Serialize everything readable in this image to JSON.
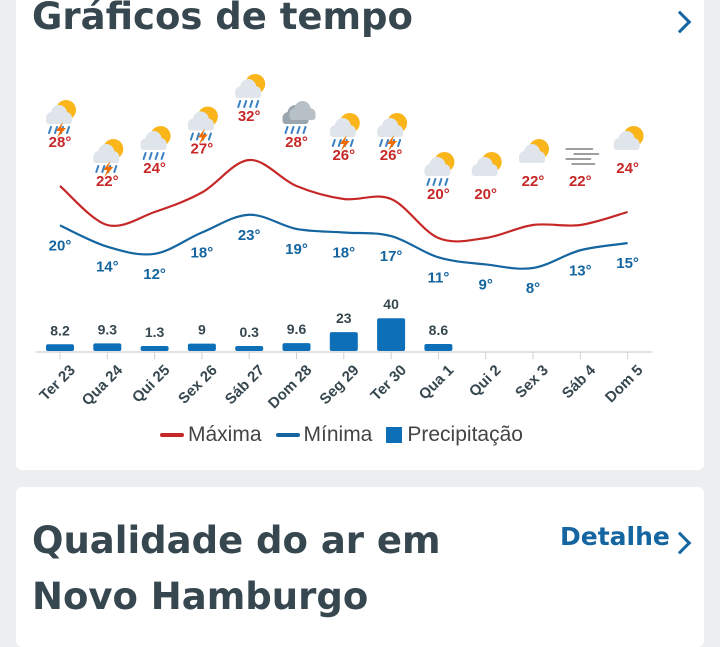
{
  "header": {
    "title": "Gráficos de tempo"
  },
  "air_quality": {
    "title": "Qualidade do ar em Novo Hamburgo",
    "detail_label": "Detalhe"
  },
  "colors": {
    "max": "#c62828",
    "min": "#1565a0",
    "precip": "#0d6fb8",
    "title": "#37474f"
  },
  "chart_data": {
    "type": "line",
    "categories": [
      "Ter 23",
      "Qua 24",
      "Qui 25",
      "Sex 26",
      "Sáb 27",
      "Dom 28",
      "Seg 29",
      "Ter 30",
      "Qua 1",
      "Qui 2",
      "Sex 3",
      "Sáb 4",
      "Dom 5"
    ],
    "icons": [
      "thunderstorm-icon",
      "thunderstorm-icon",
      "rain-icon",
      "thunderstorm-icon",
      "rain-icon",
      "cloudy-rain-icon",
      "thunderstorm-icon",
      "thunderstorm-icon",
      "rain-icon",
      "partly-sunny-icon",
      "partly-sunny-icon",
      "fog-icon",
      "partly-sunny-icon"
    ],
    "series": [
      {
        "name": "Máxima",
        "unit": "°",
        "values": [
          28,
          22,
          24,
          27,
          32,
          28,
          26,
          26,
          20,
          20,
          22,
          22,
          24
        ]
      },
      {
        "name": "Mínima",
        "unit": "°",
        "values": [
          20,
          14,
          12,
          18,
          23,
          19,
          18,
          17,
          11,
          9,
          8,
          13,
          15
        ]
      },
      {
        "name": "Precipitação",
        "type": "bar",
        "values": [
          8.2,
          9.3,
          1.3,
          9,
          0.3,
          9.6,
          23,
          40,
          8.6,
          null,
          null,
          null,
          null
        ]
      }
    ],
    "legend": [
      "Máxima",
      "Mínima",
      "Precipitação"
    ],
    "legend_position": "bottom"
  }
}
